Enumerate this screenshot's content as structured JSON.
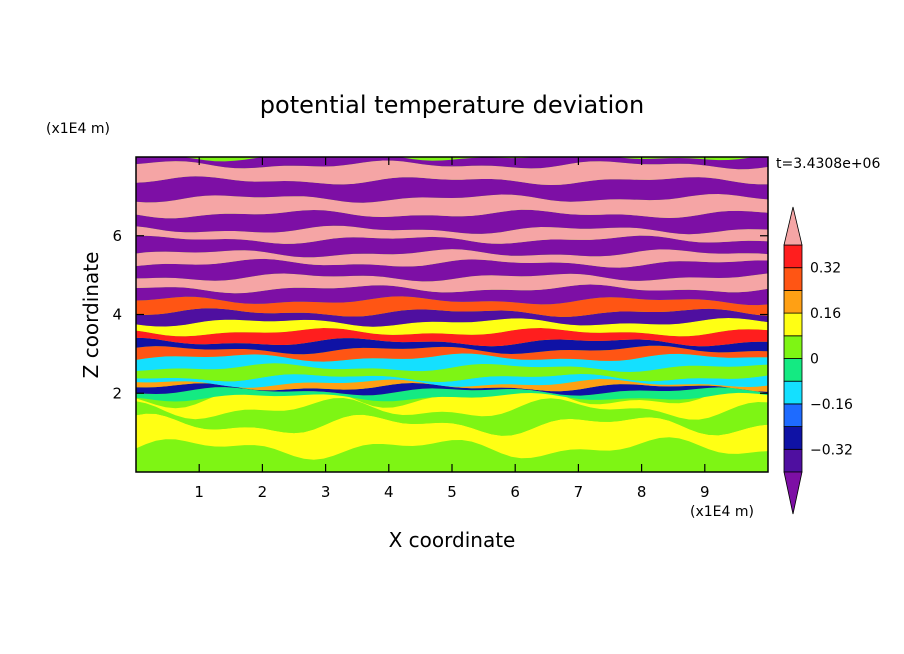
{
  "chart_data": {
    "type": "heatmap",
    "title": "potential temperature deviation",
    "xlabel": "X coordinate",
    "ylabel": "Z coordinate",
    "x_unit_label": "(x1E4 m)",
    "y_unit_label": "(x1E4 m)",
    "time_label": "t=3.4308e+06",
    "xlim": [
      0,
      10
    ],
    "ylim": [
      0,
      8
    ],
    "x_ticks": [
      1,
      2,
      3,
      4,
      5,
      6,
      7,
      8,
      9
    ],
    "y_ticks": [
      2,
      4,
      6
    ],
    "colorbar": {
      "levels": [
        -0.4,
        -0.32,
        -0.24,
        -0.16,
        -0.08,
        0,
        0.08,
        0.16,
        0.24,
        0.32,
        0.4
      ],
      "labels": [
        "0.32",
        "0.16",
        "0",
        "−0.16",
        "−0.32"
      ],
      "label_values": [
        0.32,
        0.16,
        0,
        -0.16,
        -0.32
      ],
      "extend": "both",
      "colors": [
        "#7d0fa5",
        "#4f0fa0",
        "#0f12a5",
        "#1e6bff",
        "#14e0ff",
        "#14ea82",
        "#7ef514",
        "#ffff14",
        "#ffa014",
        "#ff5514",
        "#ff1e1e",
        "#f5a5a5"
      ]
    },
    "layers": [
      {
        "z": 0.0,
        "v": 0.03
      },
      {
        "z": 0.6,
        "v": 0.1
      },
      {
        "z": 1.2,
        "v": 0.02
      },
      {
        "z": 1.6,
        "v": 0.09
      },
      {
        "z": 1.9,
        "v": -0.05
      },
      {
        "z": 2.05,
        "v": -0.3
      },
      {
        "z": 2.15,
        "v": 0.2
      },
      {
        "z": 2.25,
        "v": -0.15
      },
      {
        "z": 2.4,
        "v": 0.05
      },
      {
        "z": 2.65,
        "v": -0.1
      },
      {
        "z": 2.9,
        "v": 0.3
      },
      {
        "z": 3.1,
        "v": -0.25
      },
      {
        "z": 3.3,
        "v": 0.35
      },
      {
        "z": 3.55,
        "v": 0.1
      },
      {
        "z": 3.8,
        "v": -0.4
      },
      {
        "z": 4.05,
        "v": 0.3
      },
      {
        "z": 4.35,
        "v": -0.45
      },
      {
        "z": 4.65,
        "v": 0.42
      },
      {
        "z": 4.95,
        "v": -0.45
      },
      {
        "z": 5.3,
        "v": 0.45
      },
      {
        "z": 5.55,
        "v": -0.45
      },
      {
        "z": 5.9,
        "v": 0.45
      },
      {
        "z": 6.15,
        "v": -0.45
      },
      {
        "z": 6.55,
        "v": 0.45
      },
      {
        "z": 6.95,
        "v": -0.45
      },
      {
        "z": 7.4,
        "v": 0.45
      },
      {
        "z": 7.8,
        "v": -0.45
      },
      {
        "z": 8.0,
        "v": -0.45
      }
    ]
  }
}
